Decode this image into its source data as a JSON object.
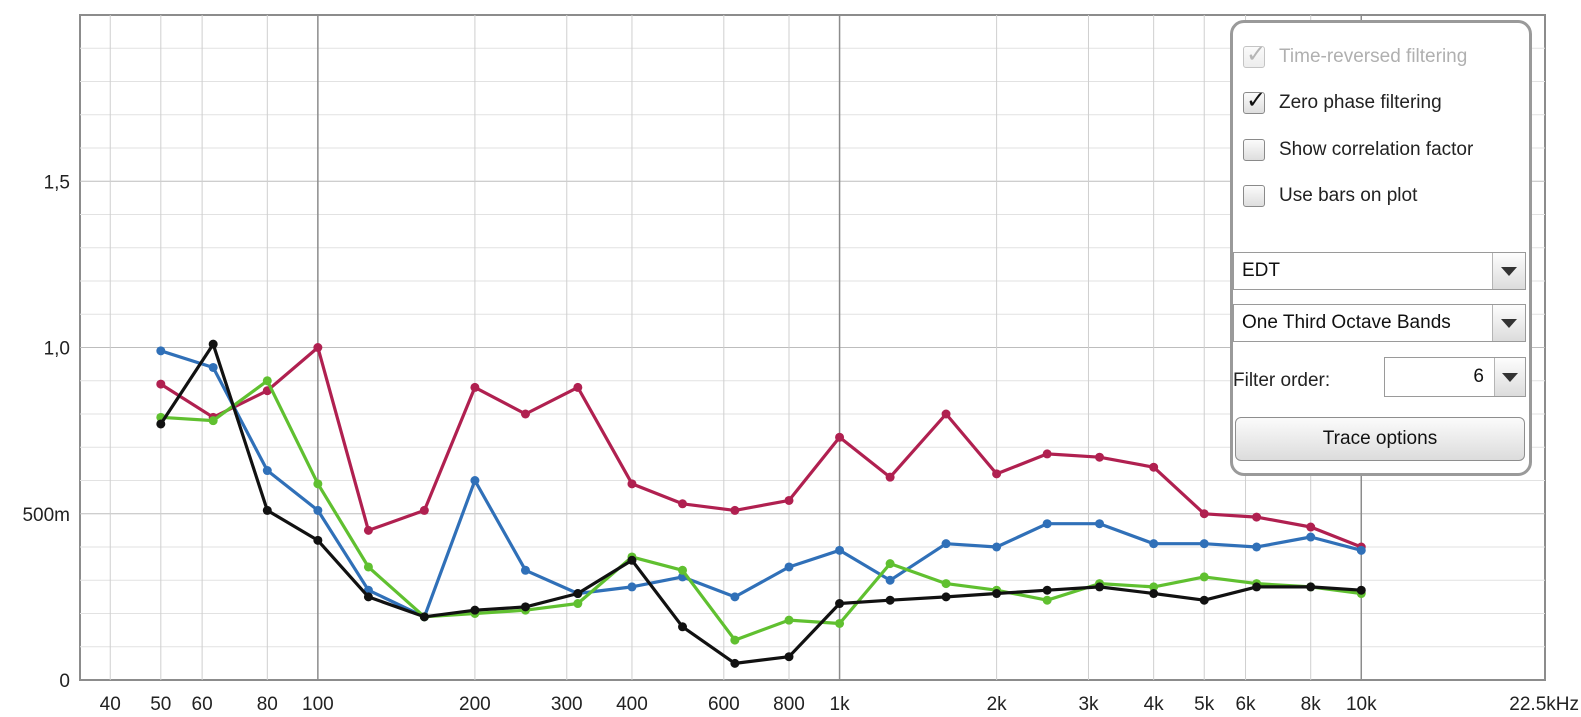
{
  "chart_data": {
    "type": "line",
    "x_scale": "log",
    "xlim": [
      35,
      22500
    ],
    "ylim": [
      0,
      2.0
    ],
    "grid": true,
    "x_tick_values": [
      40,
      50,
      60,
      80,
      100,
      200,
      300,
      400,
      600,
      800,
      1000,
      2000,
      3000,
      4000,
      5000,
      6000,
      8000,
      10000,
      22500
    ],
    "x_tick_labels": [
      "40",
      "50",
      "60",
      "80",
      "100",
      "200",
      "300",
      "400",
      "600",
      "800",
      "1k",
      "2k",
      "3k",
      "4k",
      "5k",
      "6k",
      "8k",
      "10k",
      "22.5kHz"
    ],
    "y_tick_values": [
      0,
      0.5,
      1.0,
      1.5
    ],
    "y_tick_labels": [
      "0",
      "500m",
      "1,0",
      "1,5"
    ],
    "x": [
      50,
      63,
      80,
      100,
      125,
      160,
      200,
      250,
      315,
      400,
      500,
      630,
      800,
      1000,
      1250,
      1600,
      2000,
      2500,
      3150,
      4000,
      5000,
      6300,
      8000,
      10000
    ],
    "series": [
      {
        "color": "#b02050",
        "values": [
          0.89,
          0.79,
          0.87,
          1.0,
          0.45,
          0.51,
          0.88,
          0.8,
          0.88,
          0.59,
          0.53,
          0.51,
          0.54,
          0.73,
          0.61,
          0.8,
          0.62,
          0.68,
          0.67,
          0.64,
          0.5,
          0.49,
          0.46,
          0.4
        ]
      },
      {
        "color": "#3070b8",
        "values": [
          0.99,
          0.94,
          0.63,
          0.51,
          0.27,
          0.19,
          0.6,
          0.33,
          0.26,
          0.28,
          0.31,
          0.25,
          0.34,
          0.39,
          0.3,
          0.41,
          0.4,
          0.47,
          0.47,
          0.41,
          0.41,
          0.4,
          0.43,
          0.39
        ]
      },
      {
        "color": "#60c030",
        "values": [
          0.79,
          0.78,
          0.9,
          0.59,
          0.34,
          0.19,
          0.2,
          0.21,
          0.23,
          0.37,
          0.33,
          0.12,
          0.18,
          0.17,
          0.35,
          0.29,
          0.27,
          0.24,
          0.29,
          0.28,
          0.31,
          0.29,
          0.28,
          0.26
        ]
      },
      {
        "color": "#111111",
        "values": [
          0.77,
          1.01,
          0.51,
          0.42,
          0.25,
          0.19,
          0.21,
          0.22,
          0.26,
          0.36,
          0.16,
          0.05,
          0.07,
          0.23,
          0.24,
          0.25,
          0.26,
          0.27,
          0.28,
          0.26,
          0.24,
          0.28,
          0.28,
          0.27
        ]
      }
    ]
  },
  "panel": {
    "checkboxes": [
      {
        "label": "Time-reversed filtering",
        "checked": true,
        "disabled": true
      },
      {
        "label": "Zero phase filtering",
        "checked": true,
        "disabled": false
      },
      {
        "label": "Show correlation factor",
        "checked": false,
        "disabled": false
      },
      {
        "label": "Use bars on plot",
        "checked": false,
        "disabled": false
      }
    ],
    "check_mark": "✓",
    "parameter_select": "EDT",
    "bands_select": "One Third Octave Bands",
    "filter_order_label": "Filter order:",
    "filter_order_value": "6",
    "trace_options_label": "Trace options"
  }
}
